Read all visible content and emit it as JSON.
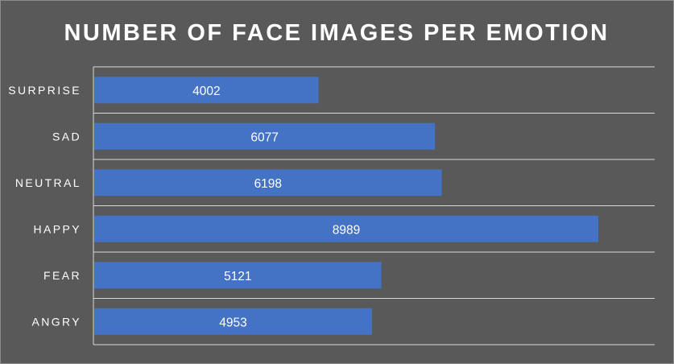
{
  "chart_data": {
    "type": "bar",
    "orientation": "horizontal",
    "title": "NUMBER OF FACE IMAGES PER EMOTION",
    "categories": [
      "SURPRISE",
      "SAD",
      "NEUTRAL",
      "HAPPY",
      "FEAR",
      "ANGRY"
    ],
    "values": [
      4002,
      6077,
      6198,
      8989,
      5121,
      4953
    ],
    "xlim": [
      0,
      9000
    ],
    "data_labels": true,
    "gridlines": "horizontal category separators",
    "legend": "none",
    "colors": {
      "background": "#595959",
      "bar": "#4472c4",
      "text": "#ffffff",
      "gridline": "#d9d9d9",
      "border": "#8c8c8c"
    }
  }
}
